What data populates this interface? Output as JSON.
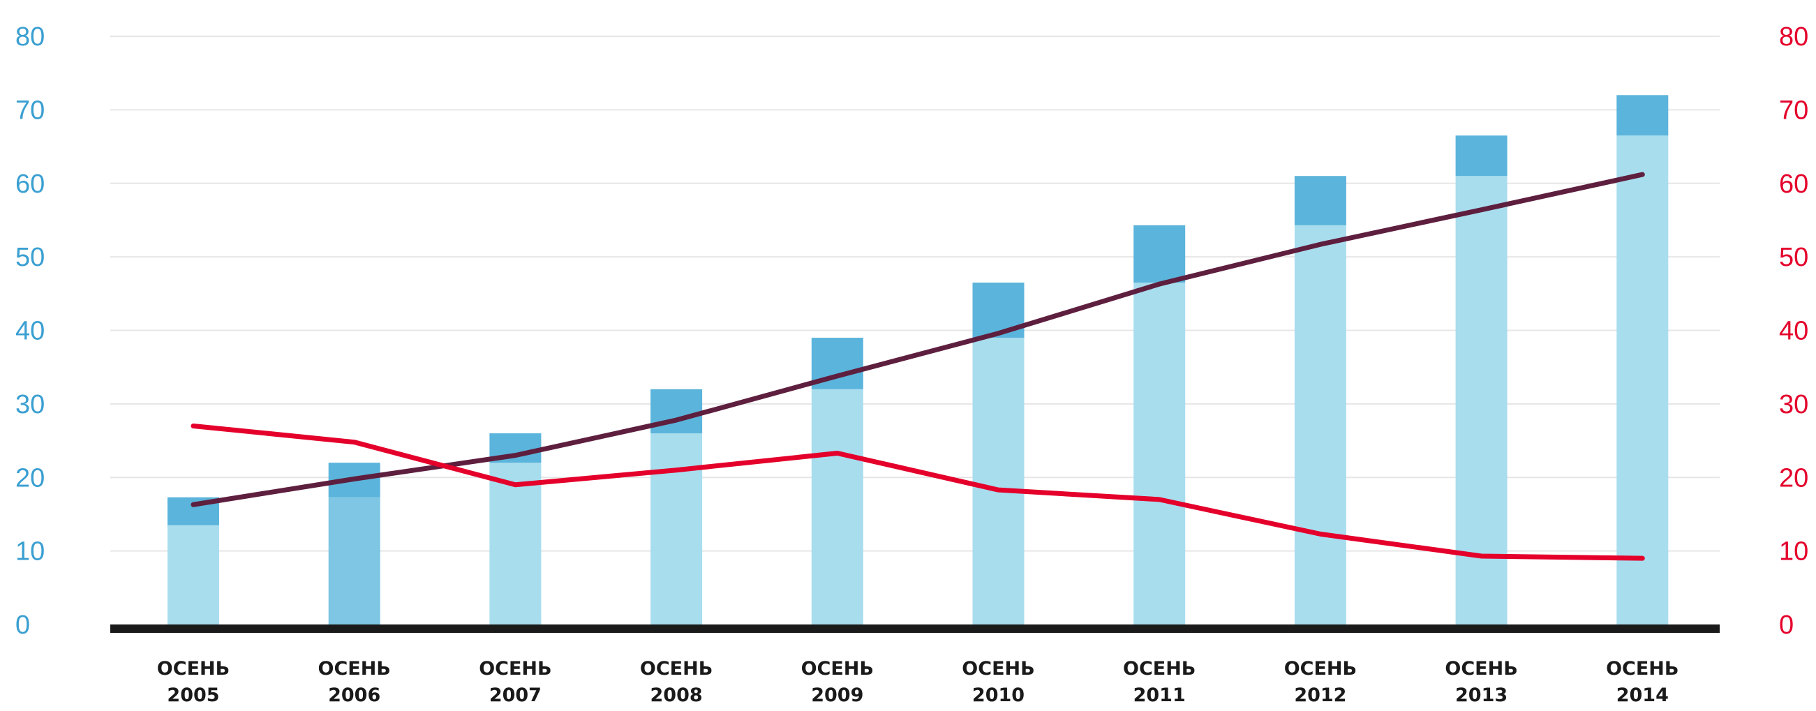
{
  "chart_data": {
    "type": "bar",
    "title": "",
    "xlabel": "",
    "ylabel": "",
    "categories": [
      [
        "ОСЕНЬ",
        "2005"
      ],
      [
        "ОСЕНЬ",
        "2006"
      ],
      [
        "ОСЕНЬ",
        "2007"
      ],
      [
        "ОСЕНЬ",
        "2008"
      ],
      [
        "ОСЕНЬ",
        "2009"
      ],
      [
        "ОСЕНЬ",
        "2010"
      ],
      [
        "ОСЕНЬ",
        "2011"
      ],
      [
        "ОСЕНЬ",
        "2012"
      ],
      [
        "ОСЕНЬ",
        "2013"
      ],
      [
        "ОСЕНЬ",
        "2014"
      ]
    ],
    "bars": {
      "lower_values": [
        13.5,
        17.3,
        22,
        26,
        32,
        39,
        46.5,
        54.3,
        61,
        66.5
      ],
      "total_values": [
        17.3,
        22,
        26,
        32,
        39,
        46.5,
        54.3,
        61,
        66.5,
        72
      ],
      "lower_color": "#a8ddee",
      "upper_color": "#5bb4db",
      "highlight_color": "#7ec6e3"
    },
    "lines": [
      {
        "color": "#5e1f3f",
        "values": [
          16.3,
          19.8,
          23,
          27.8,
          33.8,
          39.6,
          46.3,
          51.7,
          56.4,
          61.2
        ]
      },
      {
        "color": "#e4002b",
        "values": [
          27,
          24.8,
          19,
          21,
          23.3,
          18.3,
          17,
          12.3,
          9.3,
          9
        ]
      }
    ],
    "y_left": {
      "min": 0,
      "max": 80,
      "ticks": [
        0,
        10,
        20,
        30,
        40,
        50,
        60,
        70,
        80
      ],
      "color": "#3a9fd1"
    },
    "y_right": {
      "min": 0,
      "max": 80,
      "ticks": [
        0,
        10,
        20,
        30,
        40,
        50,
        60,
        70,
        80
      ],
      "color": "#e4002b"
    },
    "grid": true,
    "legend": "none"
  }
}
